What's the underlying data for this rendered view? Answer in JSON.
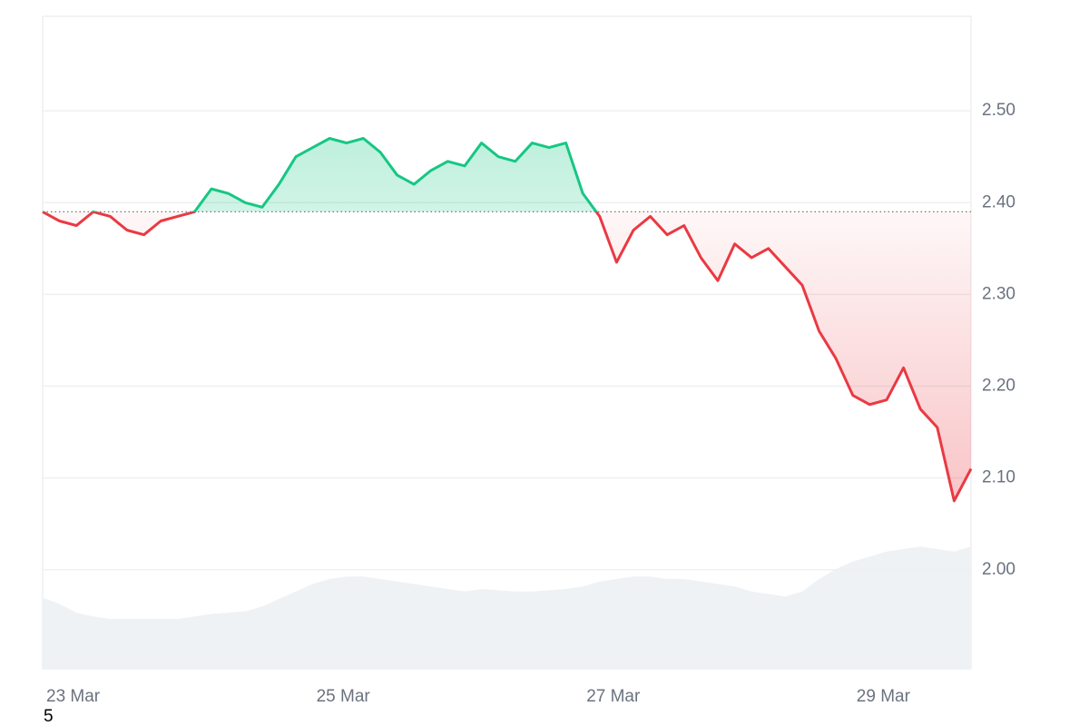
{
  "chart_data": {
    "type": "line",
    "categories": [
      "23 Mar",
      null,
      null,
      null,
      null,
      null,
      null,
      null,
      null,
      null,
      null,
      null,
      null,
      null,
      null,
      null,
      "25 Mar",
      null,
      null,
      null,
      null,
      null,
      null,
      null,
      null,
      null,
      null,
      null,
      null,
      null,
      null,
      null,
      "27 Mar",
      null,
      null,
      null,
      null,
      null,
      null,
      null,
      null,
      null,
      null,
      null,
      null,
      null,
      null,
      null,
      "29 Mar",
      null,
      null,
      null,
      null,
      null,
      null,
      null
    ],
    "values": [
      2.39,
      2.38,
      2.375,
      2.39,
      2.385,
      2.37,
      2.365,
      2.38,
      2.385,
      2.39,
      2.415,
      2.41,
      2.4,
      2.395,
      2.42,
      2.45,
      2.46,
      2.47,
      2.465,
      2.47,
      2.455,
      2.43,
      2.42,
      2.435,
      2.445,
      2.44,
      2.465,
      2.45,
      2.445,
      2.465,
      2.46,
      2.465,
      2.41,
      2.385,
      2.335,
      2.37,
      2.385,
      2.365,
      2.375,
      2.34,
      2.315,
      2.355,
      2.34,
      2.35,
      2.33,
      2.31,
      2.26,
      2.23,
      2.19,
      2.18,
      2.185,
      2.22,
      2.175,
      2.155,
      2.075,
      2.11
    ],
    "baseline": 2.39,
    "up_color": "#16c784",
    "down_color": "#ea3943",
    "ylim": [
      1.892,
      2.603
    ],
    "yticks": [
      {
        "value": 2.0,
        "label": "2.00"
      },
      {
        "value": 2.1,
        "label": "2.10"
      },
      {
        "value": 2.2,
        "label": "2.20"
      },
      {
        "value": 2.3,
        "label": "2.30"
      },
      {
        "value": 2.4,
        "label": "2.40"
      },
      {
        "value": 2.5,
        "label": "2.50"
      }
    ],
    "grid": true,
    "volume": [
      57,
      52,
      45,
      42,
      40,
      40,
      40,
      40,
      40,
      42,
      44,
      45,
      46,
      50,
      56,
      62,
      68,
      72,
      74,
      74,
      72,
      70,
      68,
      66,
      64,
      62,
      64,
      63,
      62,
      62,
      63,
      64,
      66,
      70,
      72,
      74,
      74,
      72,
      72,
      70,
      68,
      66,
      62,
      60,
      58,
      62,
      72,
      80,
      86,
      90,
      94,
      96,
      98,
      96,
      94,
      98
    ],
    "volume_lim": [
      0,
      115
    ],
    "volume_color": "#eff2f5",
    "footnote": "5"
  }
}
